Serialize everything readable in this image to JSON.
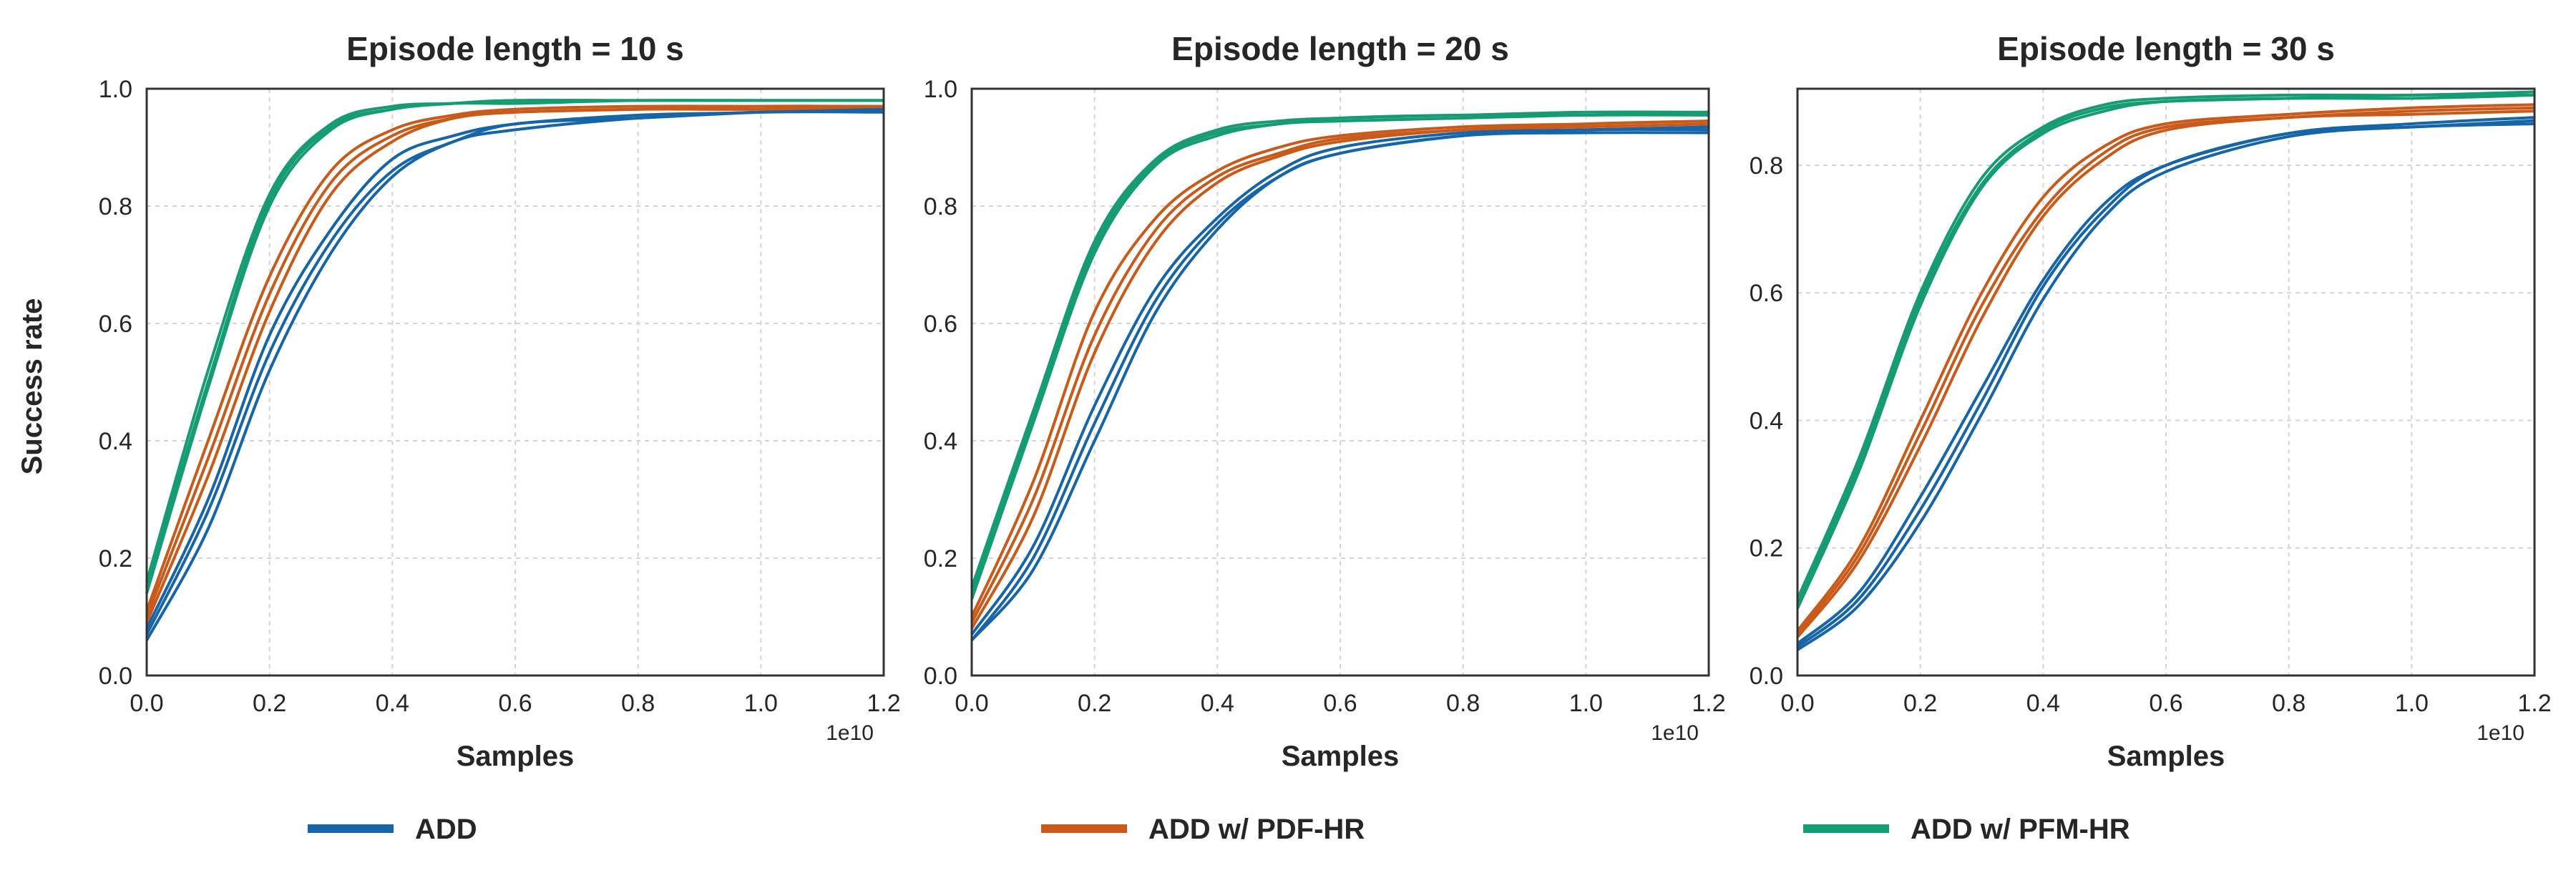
{
  "figure": {
    "ylabel": "Success rate",
    "xlabel": "Samples",
    "x_exponent": "1e10"
  },
  "legend": [
    {
      "label": "ADD",
      "color": "#1565a8"
    },
    {
      "label": "ADD w/ PDF-HR",
      "color": "#c95a1a"
    },
    {
      "label": "ADD w/ PFM-HR",
      "color": "#169c72"
    }
  ],
  "chart_data": [
    {
      "type": "line",
      "title": "Episode length = 10 s",
      "xlabel": "Samples",
      "ylabel": "Success rate",
      "xlim": [
        0,
        1.2
      ],
      "ylim": [
        0,
        1.0
      ],
      "xticks": [
        "0.0",
        "0.2",
        "0.4",
        "0.6",
        "0.8",
        "1.0",
        "1.2"
      ],
      "yticks": [
        "0.0",
        "0.2",
        "0.4",
        "0.6",
        "0.8",
        "1.0"
      ],
      "x_exponent": "1e10",
      "grid": true,
      "series": [
        {
          "name": "ADD",
          "color": "#1565a8",
          "runs": [
            {
              "x": [
                0,
                0.1,
                0.2,
                0.3,
                0.4,
                0.5,
                0.6,
                0.8,
                1.0,
                1.2
              ],
              "y": [
                0.08,
                0.3,
                0.58,
                0.76,
                0.88,
                0.92,
                0.94,
                0.955,
                0.96,
                0.97
              ]
            },
            {
              "x": [
                0,
                0.1,
                0.2,
                0.3,
                0.4,
                0.5,
                0.6,
                0.8,
                1.0,
                1.2
              ],
              "y": [
                0.07,
                0.28,
                0.55,
                0.74,
                0.86,
                0.91,
                0.94,
                0.95,
                0.96,
                0.965
              ]
            },
            {
              "x": [
                0,
                0.1,
                0.2,
                0.3,
                0.4,
                0.5,
                0.6,
                0.8,
                1.0,
                1.2
              ],
              "y": [
                0.06,
                0.25,
                0.52,
                0.72,
                0.85,
                0.91,
                0.93,
                0.95,
                0.96,
                0.96
              ]
            }
          ]
        },
        {
          "name": "ADD w/ PDF-HR",
          "color": "#c95a1a",
          "runs": [
            {
              "x": [
                0,
                0.1,
                0.2,
                0.3,
                0.4,
                0.5,
                0.6,
                0.8,
                1.0,
                1.2
              ],
              "y": [
                0.11,
                0.4,
                0.68,
                0.86,
                0.93,
                0.955,
                0.965,
                0.97,
                0.97,
                0.97
              ]
            },
            {
              "x": [
                0,
                0.1,
                0.2,
                0.3,
                0.4,
                0.5,
                0.6,
                0.8,
                1.0,
                1.2
              ],
              "y": [
                0.1,
                0.37,
                0.65,
                0.84,
                0.92,
                0.95,
                0.96,
                0.965,
                0.97,
                0.97
              ]
            },
            {
              "x": [
                0,
                0.1,
                0.2,
                0.3,
                0.4,
                0.5,
                0.6,
                0.8,
                1.0,
                1.2
              ],
              "y": [
                0.09,
                0.34,
                0.62,
                0.82,
                0.91,
                0.95,
                0.96,
                0.965,
                0.965,
                0.97
              ]
            }
          ]
        },
        {
          "name": "ADD w/ PFM-HR",
          "color": "#169c72",
          "runs": [
            {
              "x": [
                0,
                0.1,
                0.2,
                0.3,
                0.4,
                0.5,
                0.6,
                0.8,
                1.0,
                1.2
              ],
              "y": [
                0.16,
                0.52,
                0.82,
                0.94,
                0.97,
                0.975,
                0.98,
                0.98,
                0.98,
                0.98
              ]
            },
            {
              "x": [
                0,
                0.1,
                0.2,
                0.3,
                0.4,
                0.5,
                0.6,
                0.8,
                1.0,
                1.2
              ],
              "y": [
                0.15,
                0.5,
                0.81,
                0.935,
                0.965,
                0.975,
                0.98,
                0.98,
                0.98,
                0.98
              ]
            },
            {
              "x": [
                0,
                0.1,
                0.2,
                0.3,
                0.4,
                0.5,
                0.6,
                0.8,
                1.0,
                1.2
              ],
              "y": [
                0.14,
                0.49,
                0.8,
                0.93,
                0.965,
                0.975,
                0.975,
                0.98,
                0.98,
                0.98
              ]
            }
          ]
        }
      ]
    },
    {
      "type": "line",
      "title": "Episode length = 20 s",
      "xlabel": "Samples",
      "ylabel": "",
      "xlim": [
        0,
        1.2
      ],
      "ylim": [
        0,
        1.0
      ],
      "xticks": [
        "0.0",
        "0.2",
        "0.4",
        "0.6",
        "0.8",
        "1.0",
        "1.2"
      ],
      "yticks": [
        "0.0",
        "0.2",
        "0.4",
        "0.6",
        "0.8",
        "1.0"
      ],
      "x_exponent": "1e10",
      "grid": true,
      "series": [
        {
          "name": "ADD",
          "color": "#1565a8",
          "runs": [
            {
              "x": [
                0,
                0.1,
                0.2,
                0.3,
                0.4,
                0.5,
                0.6,
                0.8,
                1.0,
                1.2
              ],
              "y": [
                0.07,
                0.22,
                0.46,
                0.66,
                0.78,
                0.86,
                0.9,
                0.925,
                0.93,
                0.935
              ]
            },
            {
              "x": [
                0,
                0.1,
                0.2,
                0.3,
                0.4,
                0.5,
                0.6,
                0.8,
                1.0,
                1.2
              ],
              "y": [
                0.06,
                0.2,
                0.43,
                0.64,
                0.77,
                0.85,
                0.89,
                0.92,
                0.93,
                0.93
              ]
            },
            {
              "x": [
                0,
                0.1,
                0.2,
                0.3,
                0.4,
                0.5,
                0.6,
                0.8,
                1.0,
                1.2
              ],
              "y": [
                0.06,
                0.18,
                0.4,
                0.62,
                0.76,
                0.85,
                0.89,
                0.92,
                0.925,
                0.925
              ]
            }
          ]
        },
        {
          "name": "ADD w/ PDF-HR",
          "color": "#c95a1a",
          "runs": [
            {
              "x": [
                0,
                0.1,
                0.2,
                0.3,
                0.4,
                0.5,
                0.6,
                0.8,
                1.0,
                1.2
              ],
              "y": [
                0.1,
                0.33,
                0.62,
                0.78,
                0.86,
                0.9,
                0.92,
                0.935,
                0.94,
                0.945
              ]
            },
            {
              "x": [
                0,
                0.1,
                0.2,
                0.3,
                0.4,
                0.5,
                0.6,
                0.8,
                1.0,
                1.2
              ],
              "y": [
                0.09,
                0.3,
                0.58,
                0.76,
                0.85,
                0.89,
                0.915,
                0.93,
                0.94,
                0.945
              ]
            },
            {
              "x": [
                0,
                0.1,
                0.2,
                0.3,
                0.4,
                0.5,
                0.6,
                0.8,
                1.0,
                1.2
              ],
              "y": [
                0.08,
                0.27,
                0.55,
                0.74,
                0.84,
                0.885,
                0.91,
                0.93,
                0.935,
                0.94
              ]
            }
          ]
        },
        {
          "name": "ADD w/ PFM-HR",
          "color": "#169c72",
          "runs": [
            {
              "x": [
                0,
                0.1,
                0.2,
                0.3,
                0.4,
                0.5,
                0.6,
                0.8,
                1.0,
                1.2
              ],
              "y": [
                0.15,
                0.45,
                0.74,
                0.88,
                0.93,
                0.945,
                0.95,
                0.955,
                0.96,
                0.96
              ]
            },
            {
              "x": [
                0,
                0.1,
                0.2,
                0.3,
                0.4,
                0.5,
                0.6,
                0.8,
                1.0,
                1.2
              ],
              "y": [
                0.14,
                0.44,
                0.73,
                0.875,
                0.925,
                0.94,
                0.95,
                0.955,
                0.955,
                0.96
              ]
            },
            {
              "x": [
                0,
                0.1,
                0.2,
                0.3,
                0.4,
                0.5,
                0.6,
                0.8,
                1.0,
                1.2
              ],
              "y": [
                0.13,
                0.43,
                0.72,
                0.87,
                0.92,
                0.94,
                0.945,
                0.95,
                0.955,
                0.955
              ]
            }
          ]
        }
      ]
    },
    {
      "type": "line",
      "title": "Episode length = 30 s",
      "xlabel": "Samples",
      "ylabel": "",
      "xlim": [
        0,
        1.2
      ],
      "ylim": [
        0,
        0.92
      ],
      "xticks": [
        "0.0",
        "0.2",
        "0.4",
        "0.6",
        "0.8",
        "1.0",
        "1.2"
      ],
      "yticks": [
        "0.0",
        "0.2",
        "0.4",
        "0.6",
        "0.8"
      ],
      "x_exponent": "1e10",
      "grid": true,
      "series": [
        {
          "name": "ADD",
          "color": "#1565a8",
          "runs": [
            {
              "x": [
                0,
                0.1,
                0.2,
                0.3,
                0.4,
                0.5,
                0.6,
                0.8,
                1.0,
                1.2
              ],
              "y": [
                0.05,
                0.13,
                0.28,
                0.45,
                0.62,
                0.74,
                0.8,
                0.85,
                0.865,
                0.875
              ]
            },
            {
              "x": [
                0,
                0.1,
                0.2,
                0.3,
                0.4,
                0.5,
                0.6,
                0.8,
                1.0,
                1.2
              ],
              "y": [
                0.045,
                0.12,
                0.26,
                0.43,
                0.61,
                0.73,
                0.8,
                0.85,
                0.86,
                0.87
              ]
            },
            {
              "x": [
                0,
                0.1,
                0.2,
                0.3,
                0.4,
                0.5,
                0.6,
                0.8,
                1.0,
                1.2
              ],
              "y": [
                0.04,
                0.11,
                0.24,
                0.41,
                0.59,
                0.72,
                0.79,
                0.845,
                0.86,
                0.865
              ]
            }
          ]
        },
        {
          "name": "ADD w/ PDF-HR",
          "color": "#c95a1a",
          "runs": [
            {
              "x": [
                0,
                0.1,
                0.2,
                0.3,
                0.4,
                0.5,
                0.6,
                0.8,
                1.0,
                1.2
              ],
              "y": [
                0.07,
                0.2,
                0.4,
                0.6,
                0.75,
                0.83,
                0.865,
                0.88,
                0.89,
                0.895
              ]
            },
            {
              "x": [
                0,
                0.1,
                0.2,
                0.3,
                0.4,
                0.5,
                0.6,
                0.8,
                1.0,
                1.2
              ],
              "y": [
                0.065,
                0.19,
                0.38,
                0.58,
                0.73,
                0.82,
                0.86,
                0.875,
                0.885,
                0.89
              ]
            },
            {
              "x": [
                0,
                0.1,
                0.2,
                0.3,
                0.4,
                0.5,
                0.6,
                0.8,
                1.0,
                1.2
              ],
              "y": [
                0.06,
                0.18,
                0.36,
                0.56,
                0.72,
                0.81,
                0.855,
                0.875,
                0.88,
                0.885
              ]
            }
          ]
        },
        {
          "name": "ADD w/ PFM-HR",
          "color": "#169c72",
          "runs": [
            {
              "x": [
                0,
                0.1,
                0.2,
                0.3,
                0.4,
                0.5,
                0.6,
                0.8,
                1.0,
                1.2
              ],
              "y": [
                0.12,
                0.34,
                0.6,
                0.78,
                0.86,
                0.895,
                0.905,
                0.91,
                0.91,
                0.915
              ]
            },
            {
              "x": [
                0,
                0.1,
                0.2,
                0.3,
                0.4,
                0.5,
                0.6,
                0.8,
                1.0,
                1.2
              ],
              "y": [
                0.11,
                0.33,
                0.59,
                0.77,
                0.855,
                0.89,
                0.9,
                0.905,
                0.91,
                0.91
              ]
            },
            {
              "x": [
                0,
                0.1,
                0.2,
                0.3,
                0.4,
                0.5,
                0.6,
                0.8,
                1.0,
                1.2
              ],
              "y": [
                0.105,
                0.32,
                0.58,
                0.765,
                0.85,
                0.885,
                0.9,
                0.905,
                0.905,
                0.91
              ]
            }
          ]
        }
      ]
    }
  ]
}
